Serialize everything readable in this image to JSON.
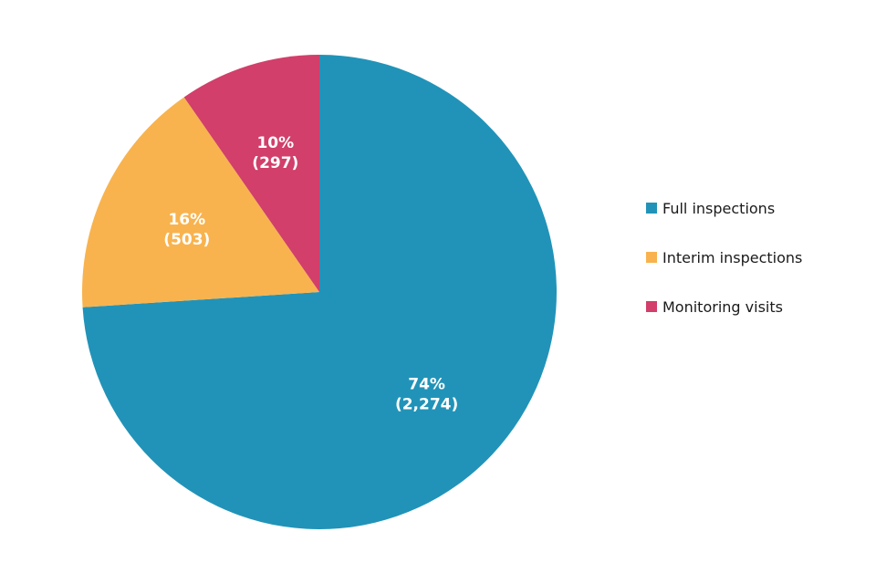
{
  "chart_data": {
    "type": "pie",
    "title": "",
    "start_angle_deg": 0,
    "direction": "clockwise",
    "legend_position": "right",
    "slices": [
      {
        "name": "Full inspections",
        "value": 2274,
        "percent_label": "74%",
        "count_label": "(2,274)",
        "color": "#2193b8"
      },
      {
        "name": "Interim inspections",
        "value": 503,
        "percent_label": "16%",
        "count_label": "(503)",
        "color": "#f8b34e"
      },
      {
        "name": "Monitoring visits",
        "value": 297,
        "percent_label": "10%",
        "count_label": "(297)",
        "color": "#d13f6a"
      }
    ]
  }
}
